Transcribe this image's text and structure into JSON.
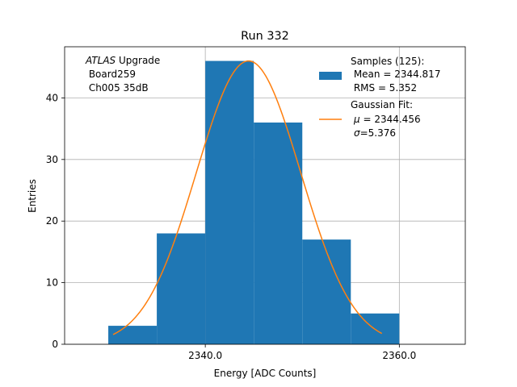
{
  "chart_data": {
    "type": "bar",
    "title": "Run 332",
    "xlabel": "Energy [ADC Counts]",
    "ylabel": "Entries",
    "xlim": [
      2325.5,
      2366.8
    ],
    "ylim": [
      0,
      48.3
    ],
    "grid": true,
    "bin_edges": [
      2330,
      2335,
      2340,
      2345,
      2350,
      2355,
      2360
    ],
    "values": [
      3,
      18,
      46,
      36,
      17,
      5
    ],
    "xticks": [
      2340.0,
      2360.0
    ],
    "xtick_labels": [
      "2340.0",
      "2360.0"
    ],
    "yticks": [
      0,
      10,
      20,
      30,
      40
    ],
    "ytick_labels": [
      "0",
      "10",
      "20",
      "30",
      "40"
    ],
    "fit": {
      "type": "gaussian",
      "mu": 2344.456,
      "sigma": 5.376,
      "amplitude": 46,
      "x_range": [
        2330.5,
        2358.2
      ]
    },
    "annotation": {
      "line1_italic": "ATLAS",
      "line1_rest": " Upgrade",
      "line2": " Board259",
      "line3": " Ch005 35dB"
    },
    "legend": {
      "placement": "top-right",
      "samples_title": "Samples (125):",
      "samples_mean": " Mean = 2344.817",
      "samples_rms": " RMS = 5.352",
      "fit_title": "Gaussian Fit:",
      "fit_mu_symbol": "μ",
      "fit_mu_value": " = 2344.456",
      "fit_sigma_symbol": "σ",
      "fit_sigma_value": "=5.376"
    },
    "colors": {
      "bars": "#1f77b4",
      "fit": "#ff7f0e",
      "grid": "#b0b0b0"
    }
  }
}
